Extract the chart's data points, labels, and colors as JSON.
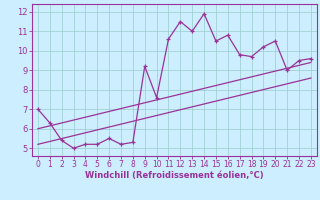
{
  "title": "",
  "xlabel": "Windchill (Refroidissement éolien,°C)",
  "ylabel": "",
  "x_data": [
    0,
    1,
    2,
    3,
    4,
    5,
    6,
    7,
    8,
    9,
    10,
    11,
    12,
    13,
    14,
    15,
    16,
    17,
    18,
    19,
    20,
    21,
    22,
    23
  ],
  "y_data": [
    7.0,
    6.3,
    5.4,
    5.0,
    5.2,
    5.2,
    5.5,
    5.2,
    5.3,
    9.2,
    7.6,
    10.6,
    11.5,
    11.0,
    11.9,
    10.5,
    10.8,
    9.8,
    9.7,
    10.2,
    10.5,
    9.0,
    9.5,
    9.6
  ],
  "trend_x": [
    0,
    23
  ],
  "trend_y": [
    6.0,
    9.4
  ],
  "lower_trend_x": [
    0,
    23
  ],
  "lower_trend_y": [
    5.2,
    8.6
  ],
  "line_color": "#993399",
  "bg_color": "#cceeff",
  "grid_color": "#99cccc",
  "axis_color": "#993399",
  "ylim": [
    4.6,
    12.4
  ],
  "xlim": [
    -0.5,
    23.5
  ],
  "yticks": [
    5,
    6,
    7,
    8,
    9,
    10,
    11,
    12
  ],
  "xticks": [
    0,
    1,
    2,
    3,
    4,
    5,
    6,
    7,
    8,
    9,
    10,
    11,
    12,
    13,
    14,
    15,
    16,
    17,
    18,
    19,
    20,
    21,
    22,
    23
  ],
  "tick_fontsize": 5.5,
  "xlabel_fontsize": 6.0
}
